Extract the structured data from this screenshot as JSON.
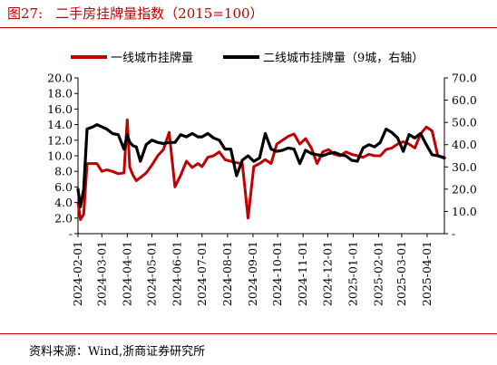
{
  "figure": {
    "number": "图27:",
    "title": "二手房挂牌量指数（2015=100）",
    "source": "资料来源：Wind,浙商证券研究所"
  },
  "colors": {
    "title": "#c00000",
    "series1": "#c00000",
    "series2": "#000000"
  },
  "chart_data": {
    "type": "line",
    "legend_position": "top",
    "grid": false,
    "x_ticks": [
      "2024-02-01",
      "2024-03-01",
      "2024-04-01",
      "2024-05-01",
      "2024-06-01",
      "2024-07-01",
      "2024-08-01",
      "2024-09-01",
      "2024-10-01",
      "2024-11-01",
      "2024-12-01",
      "2025-01-01",
      "2025-02-01",
      "2025-03-01",
      "2025-04-01"
    ],
    "x_range": [
      "2024-02-01",
      "2025-04-22"
    ],
    "y_left": {
      "range": [
        0,
        20
      ],
      "ticks": [
        "-",
        "2.0",
        "4.0",
        "6.0",
        "8.0",
        "10.0",
        "12.0",
        "14.0",
        "16.0",
        "18.0",
        "20.0"
      ]
    },
    "y_right": {
      "range": [
        0,
        70
      ],
      "ticks": [
        "-",
        "10.0",
        "20.0",
        "30.0",
        "40.0",
        "50.0",
        "60.0",
        "70.0"
      ]
    },
    "series": [
      {
        "name": "一线城市挂牌量",
        "axis": "left",
        "points": [
          [
            "2024-02-01",
            4.0
          ],
          [
            "2024-02-04",
            1.8
          ],
          [
            "2024-02-08",
            2.5
          ],
          [
            "2024-02-12",
            9.0
          ],
          [
            "2024-02-19",
            9.0
          ],
          [
            "2024-02-24",
            9.0
          ],
          [
            "2024-03-01",
            8.0
          ],
          [
            "2024-03-07",
            8.2
          ],
          [
            "2024-03-14",
            8.0
          ],
          [
            "2024-03-21",
            7.7
          ],
          [
            "2024-03-28",
            7.8
          ],
          [
            "2024-04-01",
            14.6
          ],
          [
            "2024-04-04",
            8.5
          ],
          [
            "2024-04-08",
            7.5
          ],
          [
            "2024-04-12",
            6.8
          ],
          [
            "2024-04-17",
            7.2
          ],
          [
            "2024-04-24",
            7.8
          ],
          [
            "2024-05-01",
            8.8
          ],
          [
            "2024-05-08",
            10.0
          ],
          [
            "2024-05-15",
            10.8
          ],
          [
            "2024-05-22",
            13.0
          ],
          [
            "2024-05-29",
            6.0
          ],
          [
            "2024-06-05",
            7.5
          ],
          [
            "2024-06-12",
            9.3
          ],
          [
            "2024-06-19",
            8.5
          ],
          [
            "2024-06-26",
            9.0
          ],
          [
            "2024-07-01",
            8.6
          ],
          [
            "2024-07-08",
            9.8
          ],
          [
            "2024-07-15",
            10.0
          ],
          [
            "2024-07-22",
            10.5
          ],
          [
            "2024-07-29",
            9.5
          ],
          [
            "2024-08-05",
            9.3
          ],
          [
            "2024-08-12",
            9.1
          ],
          [
            "2024-08-19",
            9.0
          ],
          [
            "2024-08-26",
            2.0
          ],
          [
            "2024-09-02",
            8.6
          ],
          [
            "2024-09-09",
            9.0
          ],
          [
            "2024-09-16",
            9.5
          ],
          [
            "2024-09-23",
            9.0
          ],
          [
            "2024-09-30",
            11.5
          ],
          [
            "2024-10-07",
            12.0
          ],
          [
            "2024-10-14",
            12.5
          ],
          [
            "2024-10-21",
            12.8
          ],
          [
            "2024-10-28",
            11.5
          ],
          [
            "2024-11-04",
            12.2
          ],
          [
            "2024-11-11",
            11.0
          ],
          [
            "2024-11-18",
            9.0
          ],
          [
            "2024-11-25",
            10.5
          ],
          [
            "2024-12-02",
            10.8
          ],
          [
            "2024-12-09",
            10.2
          ],
          [
            "2024-12-16",
            10.0
          ],
          [
            "2024-12-23",
            10.5
          ],
          [
            "2024-12-30",
            10.2
          ],
          [
            "2025-01-06",
            10.0
          ],
          [
            "2025-01-13",
            9.8
          ],
          [
            "2025-01-20",
            10.2
          ],
          [
            "2025-01-27",
            10.0
          ],
          [
            "2025-02-03",
            10.0
          ],
          [
            "2025-02-10",
            10.8
          ],
          [
            "2025-02-17",
            11.0
          ],
          [
            "2025-02-24",
            11.5
          ],
          [
            "2025-03-03",
            11.8
          ],
          [
            "2025-03-10",
            11.5
          ],
          [
            "2025-03-17",
            11.0
          ],
          [
            "2025-03-24",
            12.8
          ],
          [
            "2025-03-31",
            13.7
          ],
          [
            "2025-04-07",
            13.2
          ],
          [
            "2025-04-14",
            10.0
          ],
          [
            "2025-04-22",
            9.8
          ]
        ]
      },
      {
        "name": "二线城市挂牌量（9城，右轴）",
        "axis": "right",
        "points": [
          [
            "2024-02-01",
            20.0
          ],
          [
            "2024-02-04",
            12.0
          ],
          [
            "2024-02-08",
            20.0
          ],
          [
            "2024-02-12",
            47.0
          ],
          [
            "2024-02-19",
            48.0
          ],
          [
            "2024-02-24",
            49.0
          ],
          [
            "2024-03-01",
            48.0
          ],
          [
            "2024-03-07",
            47.0
          ],
          [
            "2024-03-14",
            45.0
          ],
          [
            "2024-03-21",
            44.5
          ],
          [
            "2024-03-28",
            38.0
          ],
          [
            "2024-04-01",
            44.5
          ],
          [
            "2024-04-04",
            41.0
          ],
          [
            "2024-04-08",
            39.5
          ],
          [
            "2024-04-12",
            39.0
          ],
          [
            "2024-04-17",
            32.5
          ],
          [
            "2024-04-24",
            40.0
          ],
          [
            "2024-05-01",
            42.0
          ],
          [
            "2024-05-08",
            41.0
          ],
          [
            "2024-05-15",
            40.5
          ],
          [
            "2024-05-22",
            41.0
          ],
          [
            "2024-05-29",
            41.0
          ],
          [
            "2024-06-05",
            44.5
          ],
          [
            "2024-06-12",
            43.5
          ],
          [
            "2024-06-19",
            45.0
          ],
          [
            "2024-06-26",
            43.5
          ],
          [
            "2024-07-01",
            43.5
          ],
          [
            "2024-07-08",
            45.0
          ],
          [
            "2024-07-15",
            43.0
          ],
          [
            "2024-07-22",
            42.0
          ],
          [
            "2024-07-29",
            38.0
          ],
          [
            "2024-08-05",
            38.0
          ],
          [
            "2024-08-12",
            26.0
          ],
          [
            "2024-08-19",
            33.0
          ],
          [
            "2024-08-26",
            35.0
          ],
          [
            "2024-09-02",
            32.5
          ],
          [
            "2024-09-09",
            34.0
          ],
          [
            "2024-09-16",
            45.0
          ],
          [
            "2024-09-23",
            38.0
          ],
          [
            "2024-09-30",
            37.0
          ],
          [
            "2024-10-07",
            37.5
          ],
          [
            "2024-10-14",
            38.5
          ],
          [
            "2024-10-21",
            38.0
          ],
          [
            "2024-10-28",
            31.5
          ],
          [
            "2024-11-04",
            37.5
          ],
          [
            "2024-11-11",
            36.0
          ],
          [
            "2024-11-18",
            35.5
          ],
          [
            "2024-11-25",
            35.0
          ],
          [
            "2024-12-02",
            36.0
          ],
          [
            "2024-12-09",
            36.5
          ],
          [
            "2024-12-16",
            35.5
          ],
          [
            "2024-12-23",
            35.0
          ],
          [
            "2024-12-30",
            33.0
          ],
          [
            "2025-01-06",
            32.5
          ],
          [
            "2025-01-13",
            38.5
          ],
          [
            "2025-01-20",
            40.0
          ],
          [
            "2025-01-27",
            39.0
          ],
          [
            "2025-02-03",
            41.0
          ],
          [
            "2025-02-10",
            47.0
          ],
          [
            "2025-02-17",
            45.5
          ],
          [
            "2025-02-24",
            43.0
          ],
          [
            "2025-03-03",
            37.0
          ],
          [
            "2025-03-10",
            44.5
          ],
          [
            "2025-03-17",
            43.0
          ],
          [
            "2025-03-24",
            45.0
          ],
          [
            "2025-03-31",
            40.0
          ],
          [
            "2025-04-07",
            35.5
          ],
          [
            "2025-04-14",
            35.0
          ],
          [
            "2025-04-22",
            34.0
          ]
        ]
      }
    ]
  }
}
